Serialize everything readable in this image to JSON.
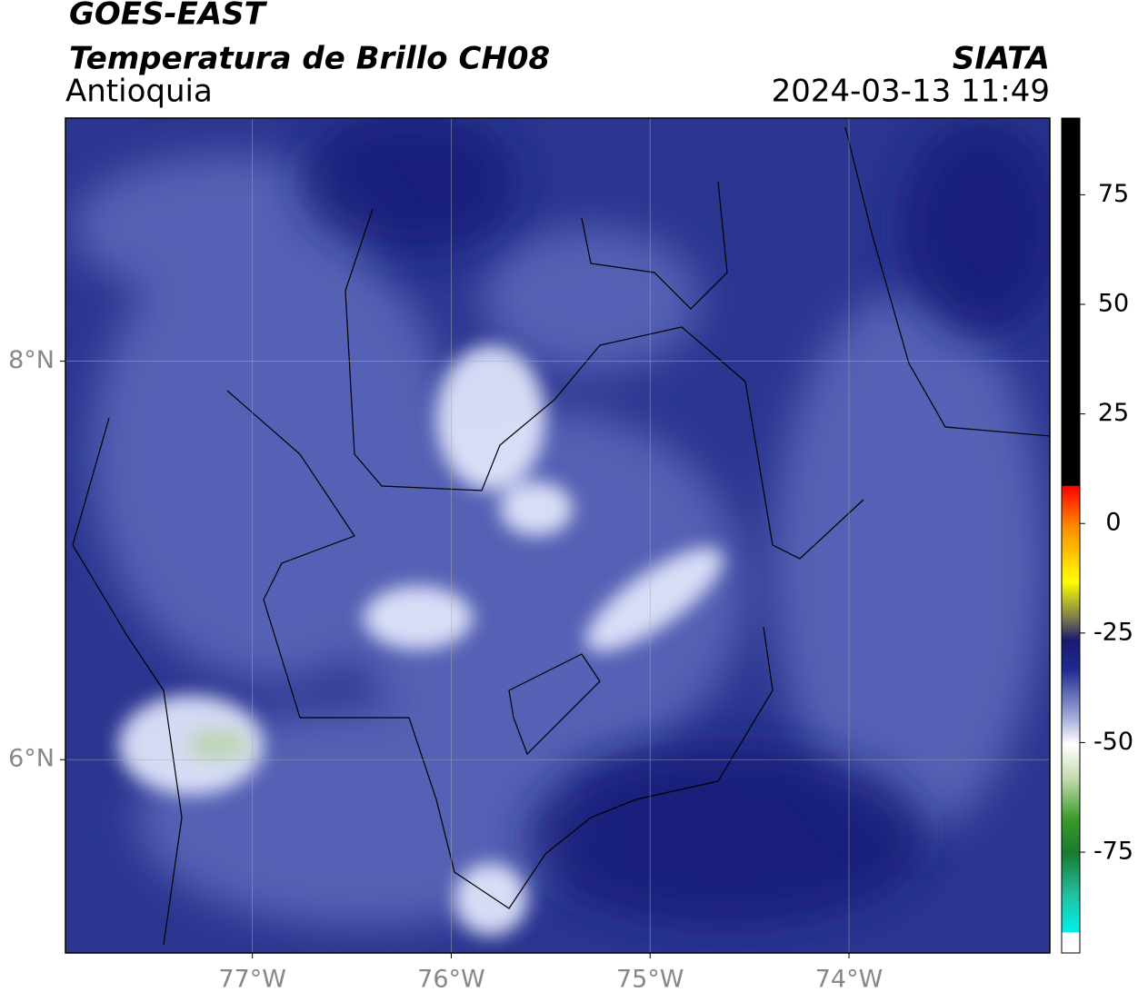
{
  "header": {
    "title": "GOES-EAST",
    "subtitle": "Temperatura de Brillo CH08",
    "region": "Antioquia",
    "source": "SIATA",
    "timestamp": "2024-03-13 11:49"
  },
  "map": {
    "xlim": [
      -77.94,
      -72.99
    ],
    "ylim": [
      5.03,
      9.22
    ],
    "xticks": [
      {
        "value": -77,
        "label": "77°W"
      },
      {
        "value": -76,
        "label": "76°W"
      },
      {
        "value": -75,
        "label": "75°W"
      },
      {
        "value": -74,
        "label": "74°W"
      }
    ],
    "yticks": [
      {
        "value": 8,
        "label": "8°N"
      },
      {
        "value": 6,
        "label": "6°N"
      }
    ],
    "grid": true
  },
  "colorbar": {
    "ylim": [
      -98,
      92.5
    ],
    "yticks": [
      75,
      50,
      25,
      0,
      -25,
      -50,
      -75
    ]
  }
}
